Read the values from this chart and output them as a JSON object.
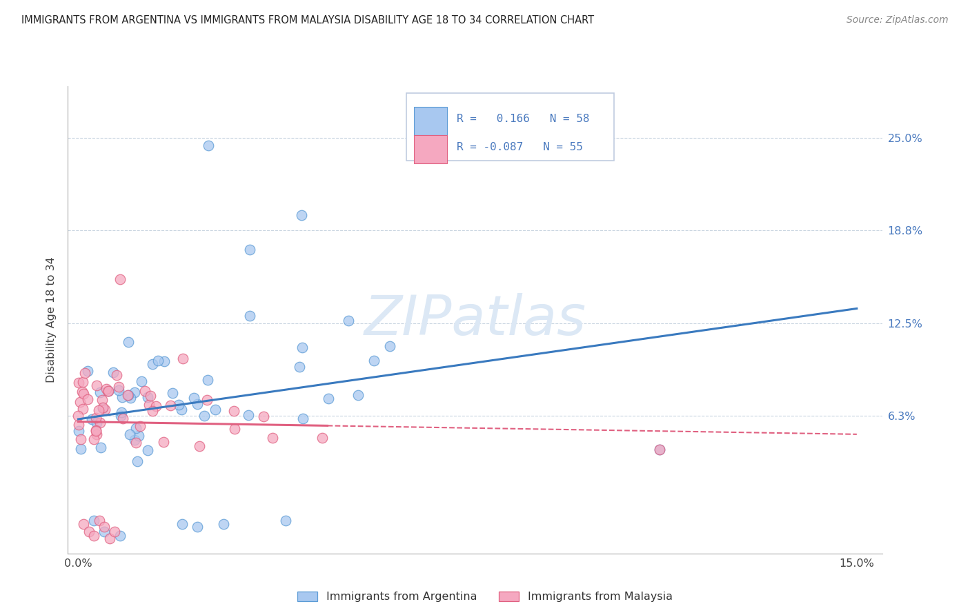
{
  "title": "IMMIGRANTS FROM ARGENTINA VS IMMIGRANTS FROM MALAYSIA DISABILITY AGE 18 TO 34 CORRELATION CHART",
  "source": "Source: ZipAtlas.com",
  "ylabel": "Disability Age 18 to 34",
  "color_argentina": "#a8c8f0",
  "color_malaysia": "#f5a8c0",
  "edge_argentina": "#5b9bd5",
  "edge_malaysia": "#e06080",
  "line_argentina": "#3a7abf",
  "line_malaysia": "#e06080",
  "watermark_color": "#dce8f5",
  "ytick_vals": [
    0.063,
    0.125,
    0.188,
    0.25
  ],
  "ytick_labels": [
    "6.3%",
    "12.5%",
    "18.8%",
    "25.0%"
  ],
  "grid_color": "#c8d4e0",
  "legend_r1": "R =  0.166",
  "legend_n1": "N = 58",
  "legend_r2": "R = -0.087",
  "legend_n2": "N = 55",
  "tick_color": "#4a7abf"
}
